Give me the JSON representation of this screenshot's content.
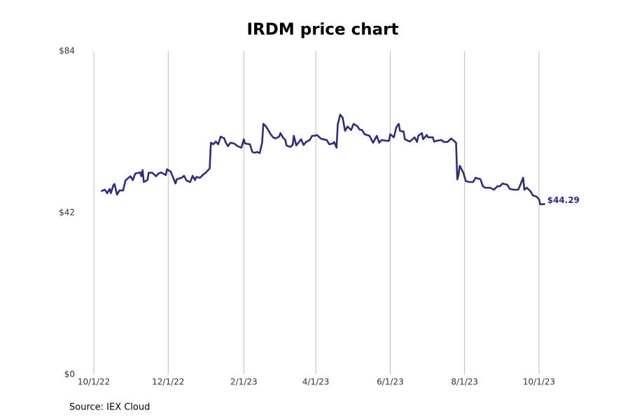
{
  "chart_data": {
    "type": "line",
    "title": "IRDM price chart",
    "source": "Source: IEX Cloud",
    "color": "#2e2d7c",
    "grid": true,
    "xlim": [
      "2022-10-01",
      "2023-11-05"
    ],
    "xticks": [
      {
        "value": "2022-10-01",
        "label": "10/1/22"
      },
      {
        "value": "2022-12-01",
        "label": "12/1/22"
      },
      {
        "value": "2023-02-01",
        "label": "2/1/23"
      },
      {
        "value": "2023-04-01",
        "label": "4/1/23"
      },
      {
        "value": "2023-06-01",
        "label": "6/1/23"
      },
      {
        "value": "2023-08-01",
        "label": "8/1/23"
      },
      {
        "value": "2023-10-01",
        "label": "10/1/23"
      }
    ],
    "ylim": [
      0,
      84
    ],
    "yticks": [
      {
        "value": 0,
        "label": "$0"
      },
      {
        "value": 42,
        "label": "$42"
      },
      {
        "value": 84,
        "label": "$84"
      }
    ],
    "x": [
      "2022-10-07",
      "2022-10-10",
      "2022-10-12",
      "2022-10-14",
      "2022-10-15",
      "2022-10-17",
      "2022-10-18",
      "2022-10-20",
      "2022-10-22",
      "2022-10-25",
      "2022-10-27",
      "2022-10-31",
      "2022-11-02",
      "2022-11-04",
      "2022-11-08",
      "2022-11-09",
      "2022-11-10",
      "2022-11-11",
      "2022-11-14",
      "2022-11-15",
      "2022-11-18",
      "2022-11-21",
      "2022-11-23",
      "2022-11-25",
      "2022-11-29",
      "2022-11-30",
      "2022-12-03",
      "2022-12-06",
      "2022-12-07",
      "2022-12-08",
      "2022-12-12",
      "2022-12-14",
      "2022-12-16",
      "2022-12-19",
      "2022-12-21",
      "2022-12-23",
      "2022-12-24",
      "2022-12-27",
      "2022-12-30",
      "2023-01-01",
      "2023-01-04",
      "2023-01-05",
      "2023-01-07",
      "2023-01-09",
      "2023-01-11",
      "2023-01-13",
      "2023-01-16",
      "2023-01-17",
      "2023-01-19",
      "2023-01-21",
      "2023-01-24",
      "2023-01-27",
      "2023-01-30",
      "2023-02-01",
      "2023-02-02",
      "2023-02-06",
      "2023-02-08",
      "2023-02-10",
      "2023-02-12",
      "2023-02-14",
      "2023-02-16",
      "2023-02-17",
      "2023-02-19",
      "2023-02-21",
      "2023-02-23",
      "2023-02-25",
      "2023-02-27",
      "2023-03-02",
      "2023-03-03",
      "2023-03-05",
      "2023-03-07",
      "2023-03-08",
      "2023-03-11",
      "2023-03-13",
      "2023-03-14",
      "2023-03-16",
      "2023-03-19",
      "2023-03-20",
      "2023-03-22",
      "2023-03-24",
      "2023-03-27",
      "2023-03-29",
      "2023-03-31",
      "2023-04-02",
      "2023-04-05",
      "2023-04-07",
      "2023-04-10",
      "2023-04-12",
      "2023-04-15",
      "2023-04-16",
      "2023-04-18",
      "2023-04-19",
      "2023-04-21",
      "2023-04-23",
      "2023-04-25",
      "2023-04-27",
      "2023-04-30",
      "2023-05-02",
      "2023-05-05",
      "2023-05-07",
      "2023-05-09",
      "2023-05-11",
      "2023-05-15",
      "2023-05-18",
      "2023-05-21",
      "2023-05-23",
      "2023-05-25",
      "2023-05-29",
      "2023-05-31",
      "2023-06-01",
      "2023-06-04",
      "2023-06-06",
      "2023-06-08",
      "2023-06-09",
      "2023-06-12",
      "2023-06-13",
      "2023-06-17",
      "2023-06-20",
      "2023-06-21",
      "2023-06-23",
      "2023-06-24",
      "2023-06-27",
      "2023-06-28",
      "2023-07-01",
      "2023-07-02",
      "2023-07-06",
      "2023-07-07",
      "2023-07-09",
      "2023-07-13",
      "2023-07-15",
      "2023-07-18",
      "2023-07-21",
      "2023-07-25",
      "2023-07-26",
      "2023-07-27",
      "2023-07-28",
      "2023-07-31",
      "2023-08-02",
      "2023-08-05",
      "2023-08-08",
      "2023-08-10",
      "2023-08-14",
      "2023-08-16",
      "2023-08-18",
      "2023-08-22",
      "2023-08-25",
      "2023-08-28",
      "2023-08-30",
      "2023-09-01",
      "2023-09-05",
      "2023-09-07",
      "2023-09-10",
      "2023-09-14",
      "2023-09-16",
      "2023-09-18",
      "2023-09-19",
      "2023-09-21",
      "2023-09-24",
      "2023-09-26",
      "2023-09-29",
      "2023-10-01",
      "2023-10-02",
      "2023-10-06"
    ],
    "values": [
      47.6,
      48,
      47.1,
      48.2,
      47.1,
      49.1,
      49.5,
      46.7,
      47.8,
      47.8,
      50.4,
      51.5,
      50.5,
      52.2,
      52.5,
      51.5,
      53.1,
      50,
      50.5,
      52.4,
      52.4,
      51.5,
      52.2,
      52.5,
      51.8,
      53.3,
      52.7,
      50.4,
      49.6,
      50.7,
      51.1,
      51.6,
      50.4,
      50,
      51.6,
      50.5,
      51.3,
      51.1,
      52,
      52.5,
      53.5,
      60.2,
      59.8,
      60.5,
      59.8,
      61.8,
      61.3,
      60.4,
      59.3,
      60.2,
      60,
      59.3,
      58.9,
      61.1,
      60,
      59.8,
      57.8,
      57.6,
      57.8,
      57.5,
      60.2,
      65.1,
      64.5,
      63.5,
      62.4,
      61.6,
      61.3,
      61.8,
      62.7,
      61.6,
      60.9,
      59.5,
      59.1,
      59.6,
      62,
      59.5,
      60.7,
      61.1,
      59.6,
      60.4,
      60.9,
      62,
      62,
      62.2,
      61.3,
      61.1,
      60.9,
      59.8,
      60,
      60.4,
      58.9,
      64.9,
      67.5,
      66.7,
      63.3,
      64.4,
      63.5,
      65.1,
      64.5,
      63.6,
      63.5,
      62.4,
      62,
      60.2,
      62,
      60.2,
      60.9,
      60.7,
      60.7,
      62.4,
      61.6,
      64.2,
      65.1,
      63.3,
      63.1,
      61.1,
      60.5,
      61.3,
      61.6,
      60.4,
      62,
      62.7,
      61.1,
      62.2,
      61.6,
      61.6,
      60.5,
      60.7,
      60.9,
      60.4,
      60.4,
      61.3,
      60.2,
      50.7,
      51.8,
      54.2,
      52.4,
      50.2,
      50,
      50,
      51.1,
      50.7,
      48.9,
      48.5,
      48.5,
      48,
      48.9,
      48.9,
      49.6,
      49.3,
      48.2,
      48,
      48,
      49.5,
      51.1,
      48,
      48.5,
      47.6,
      46.5,
      46.2,
      45.5,
      44.2,
      44.29
    ],
    "value_labels": [
      null,
      null,
      null,
      null,
      null,
      null,
      null,
      null,
      null,
      null,
      null,
      null,
      null,
      null,
      null,
      null,
      null,
      null,
      null,
      null,
      null,
      null,
      null,
      null,
      null,
      null,
      null,
      null,
      null,
      null,
      null,
      null,
      null,
      null,
      null,
      null,
      null,
      null,
      null,
      null,
      null,
      null,
      null,
      null,
      null,
      null,
      null,
      null,
      null,
      null,
      null,
      null,
      null,
      null,
      null,
      null,
      null,
      null,
      null,
      null,
      null,
      null,
      null,
      null,
      null,
      null,
      null,
      null,
      null,
      null,
      null,
      null,
      null,
      null,
      null,
      null,
      null,
      null,
      null,
      null,
      null,
      null,
      null,
      null,
      null,
      null,
      null,
      null,
      null,
      null,
      null,
      null,
      null,
      null,
      null,
      null,
      null,
      null,
      null,
      null,
      null,
      null,
      null,
      null,
      null,
      null,
      null,
      null,
      null,
      null,
      null,
      null,
      null,
      null,
      null,
      null,
      null,
      null,
      null,
      null,
      null,
      null,
      null,
      null,
      null,
      null,
      null,
      null,
      null,
      null,
      null,
      null,
      null,
      null,
      null,
      null,
      null,
      null,
      null,
      null,
      null,
      null,
      null,
      null,
      null,
      null,
      null,
      null,
      null,
      null,
      null,
      null,
      null,
      null,
      null,
      null,
      null,
      null,
      null,
      null,
      null,
      null,
      "$44.29"
    ]
  }
}
